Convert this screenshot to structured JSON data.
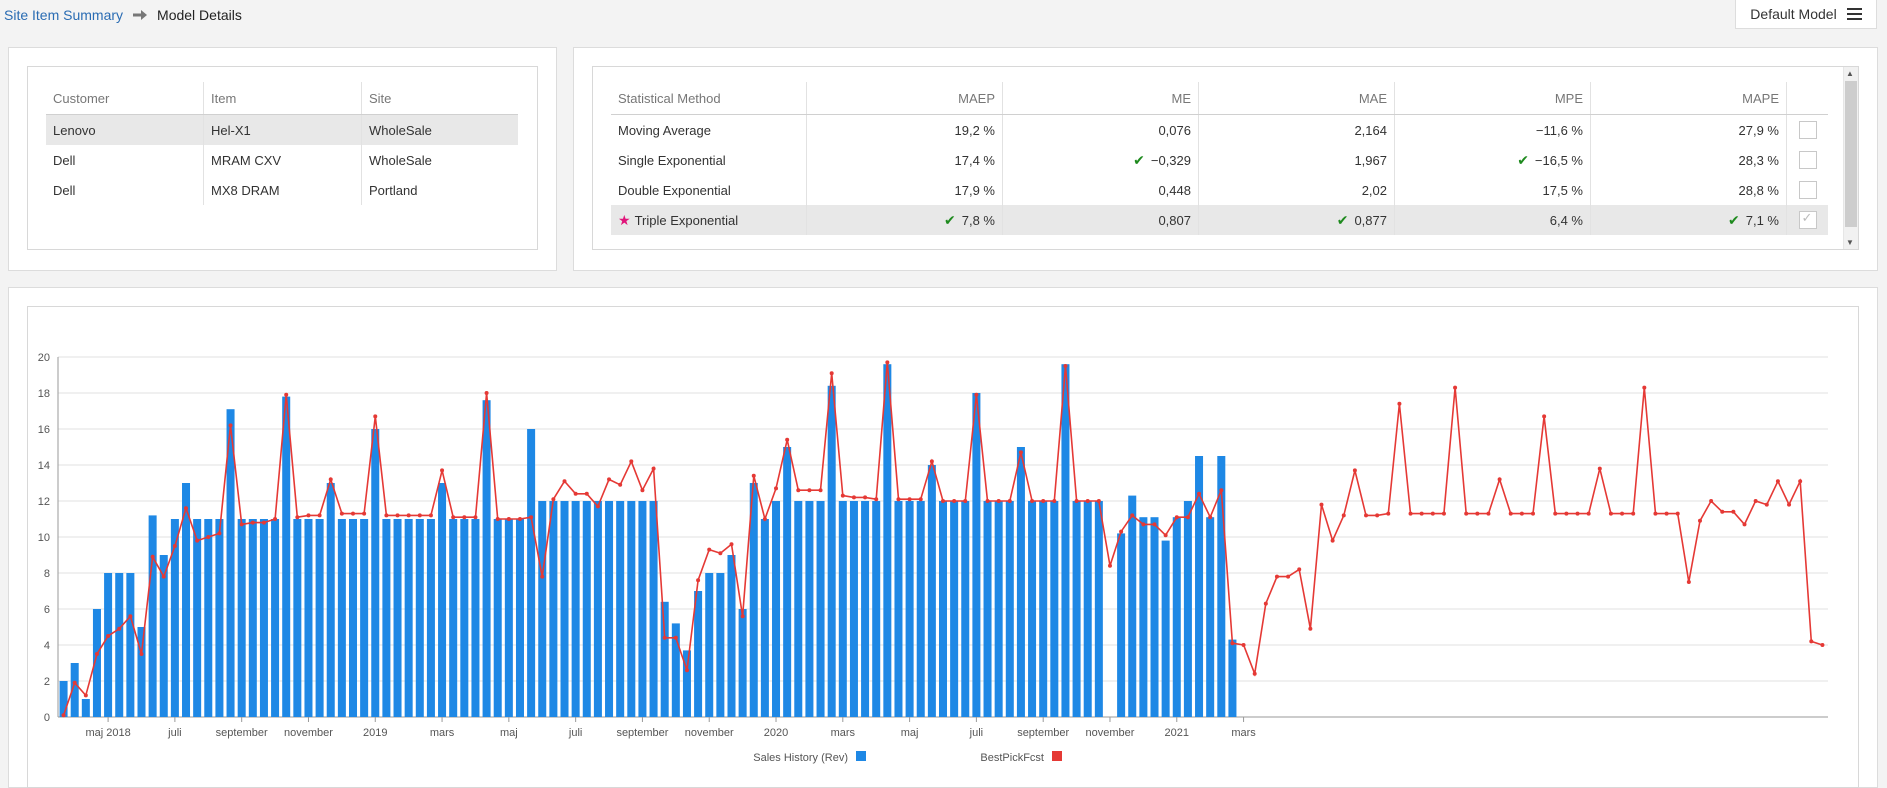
{
  "breadcrumb": {
    "link": "Site Item Summary",
    "current": "Model Details"
  },
  "model_button": {
    "label": "Default Model"
  },
  "items_table": {
    "headers": [
      "Customer",
      "Item",
      "Site"
    ],
    "rows": [
      [
        "Lenovo",
        "Hel-X1",
        "WholeSale"
      ],
      [
        "Dell",
        "MRAM CXV",
        "WholeSale"
      ],
      [
        "Dell",
        "MX8 DRAM",
        "Portland"
      ]
    ],
    "selected_row": 0
  },
  "methods_table": {
    "headers": [
      "Statistical Method",
      "MAEP",
      "ME",
      "MAE",
      "MPE",
      "MAPE"
    ],
    "rows": [
      {
        "method": "Moving Average",
        "maep": "19,2 %",
        "me": "0,076",
        "mae": "2,164",
        "mpe": "−11,6 %",
        "mape": "27,9 %",
        "best": [],
        "selected": false,
        "checked": false
      },
      {
        "method": "Single Exponential",
        "maep": "17,4 %",
        "me": "−0,329",
        "mae": "1,967",
        "mpe": "−16,5 %",
        "mape": "28,3 %",
        "best": [
          "me",
          "mpe"
        ],
        "selected": false,
        "checked": false
      },
      {
        "method": "Double Exponential",
        "maep": "17,9 %",
        "me": "0,448",
        "mae": "2,02",
        "mpe": "17,5 %",
        "mape": "28,8 %",
        "best": [],
        "selected": false,
        "checked": false
      },
      {
        "method": "Triple Exponential",
        "maep": "7,8 %",
        "me": "0,807",
        "mae": "0,877",
        "mpe": "6,4 %",
        "mape": "7,1 %",
        "best": [
          "maep",
          "mae",
          "mape"
        ],
        "selected": true,
        "checked": true
      }
    ]
  },
  "chart_data": {
    "type": "bar",
    "x_ticks": [
      "maj 2018",
      "juli",
      "september",
      "november",
      "2019",
      "mars",
      "maj",
      "juli",
      "september",
      "november",
      "2020",
      "mars",
      "maj",
      "juli",
      "september",
      "november",
      "2021",
      "mars"
    ],
    "ylim": [
      0,
      20
    ],
    "y_ticks": [
      0,
      2,
      4,
      6,
      8,
      10,
      12,
      14,
      16,
      18,
      20
    ],
    "grid": true,
    "legend_position": "bottom-center",
    "series": [
      {
        "name": "Sales History (Rev)",
        "kind": "bar",
        "color": "#1e88e5",
        "values": [
          2,
          3,
          1,
          6,
          8,
          8,
          8,
          5,
          11.2,
          9,
          11,
          13,
          11,
          11,
          11,
          17.1,
          11,
          11,
          11,
          11,
          17.8,
          11,
          11,
          11,
          13,
          11,
          11,
          11,
          16,
          11,
          11,
          11,
          11,
          11,
          13,
          11,
          11,
          11,
          17.6,
          11,
          11,
          11,
          16,
          12,
          12,
          12,
          12,
          12,
          12,
          12,
          12,
          12,
          12,
          12,
          6.4,
          5.2,
          3.7,
          7,
          8,
          8,
          9,
          6,
          13,
          11,
          12,
          15,
          12,
          12,
          12,
          18.4,
          12,
          12,
          12,
          12,
          19.6,
          12,
          12,
          12,
          14,
          12,
          12,
          12,
          18,
          12,
          12,
          12,
          15,
          12,
          12,
          12,
          19.6,
          12,
          12,
          12,
          0,
          10.2,
          12.3,
          11.1,
          11.1,
          9.8,
          11.1,
          12,
          14.5,
          11.1,
          14.5,
          4.3
        ]
      },
      {
        "name": "BestPickFcst",
        "kind": "line",
        "color": "#e53935",
        "values": [
          0.1,
          1.9,
          1.2,
          3.5,
          4.5,
          4.9,
          5.6,
          3.5,
          8.9,
          7.8,
          9.5,
          11.6,
          9.8,
          10,
          10.2,
          16.2,
          10.7,
          10.8,
          10.8,
          11,
          17.9,
          11.1,
          11.2,
          11.2,
          13.2,
          11.3,
          11.3,
          11.3,
          16.7,
          11.2,
          11.2,
          11.2,
          11.2,
          11.2,
          13.7,
          11.1,
          11.1,
          11.1,
          18,
          11,
          11,
          11,
          11.1,
          7.8,
          12.1,
          13.1,
          12.4,
          12.4,
          11.7,
          13.2,
          12.9,
          14.2,
          12.6,
          13.8,
          4.4,
          4.4,
          2.6,
          7.6,
          9.3,
          9.1,
          9.6,
          5.6,
          13.4,
          11,
          12.7,
          15.4,
          12.6,
          12.6,
          12.6,
          19.1,
          12.3,
          12.2,
          12.2,
          12.1,
          19.7,
          12.1,
          12.1,
          12.1,
          14.2,
          12,
          12,
          12,
          17.9,
          12,
          12,
          12,
          14.7,
          12,
          12,
          12,
          19.5,
          12,
          12,
          12,
          8.4,
          10.3,
          11.2,
          10.7,
          10.7,
          10.1,
          11.1,
          11.1,
          12.4,
          11.1,
          12.6,
          4.1,
          4,
          2.4,
          6.3,
          7.8,
          7.8,
          8.2,
          4.9,
          11.8,
          9.8,
          11.2,
          13.7,
          11.2,
          11.2,
          11.3,
          17.4,
          11.3,
          11.3,
          11.3,
          11.3,
          18.3,
          11.3,
          11.3,
          11.3,
          13.2,
          11.3,
          11.3,
          11.3,
          16.7,
          11.3,
          11.3,
          11.3,
          11.3,
          13.8,
          11.3,
          11.3,
          11.3,
          18.3,
          11.3,
          11.3,
          11.3,
          7.5,
          10.9,
          12,
          11.4,
          11.4,
          10.7,
          12,
          11.8,
          13.1,
          11.8,
          13.1,
          4.2,
          4
        ]
      }
    ]
  }
}
